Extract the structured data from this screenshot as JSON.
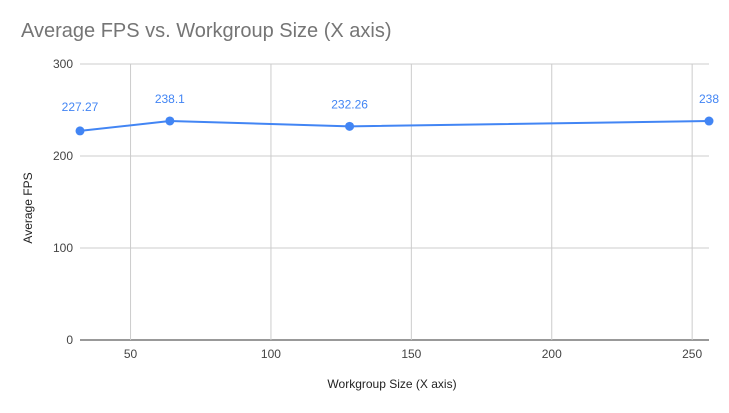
{
  "chart_data": {
    "type": "line",
    "title": "Average FPS vs. Workgroup Size (X axis)",
    "xlabel": "Workgroup Size (X axis)",
    "ylabel": "Average FPS",
    "xlim": [
      32,
      256
    ],
    "ylim": [
      0,
      300
    ],
    "x_ticks": [
      50,
      100,
      150,
      200,
      250
    ],
    "y_ticks": [
      0,
      100,
      200,
      300
    ],
    "grid": true,
    "legend": "none",
    "series": [
      {
        "color": "#4285f4",
        "x": [
          32,
          64,
          128,
          256
        ],
        "values": [
          227.27,
          238.1,
          232.26,
          238
        ],
        "labels": [
          "227.27",
          "238.1",
          "232.26",
          "238"
        ]
      }
    ]
  }
}
